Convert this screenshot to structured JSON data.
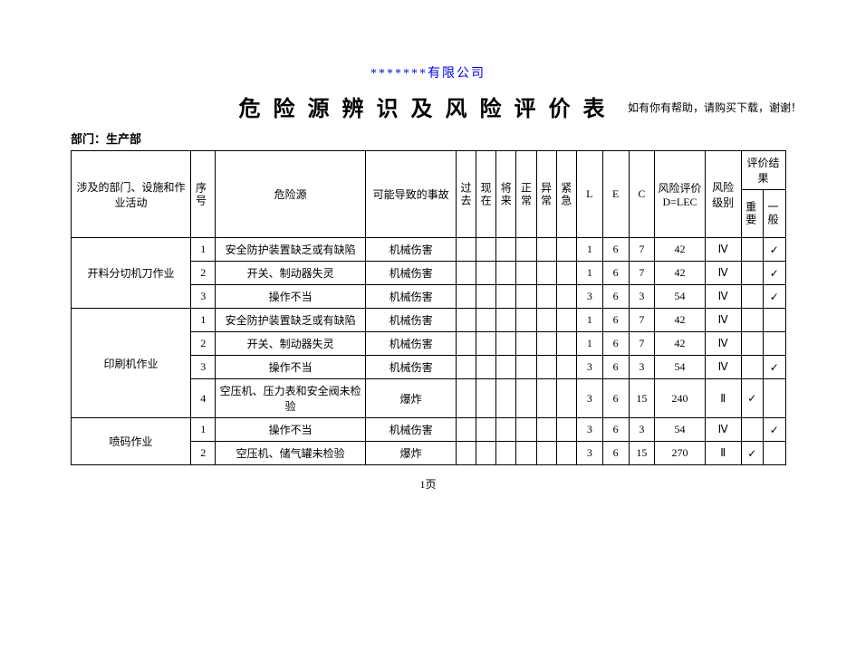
{
  "top_note": "如有你有帮助，请购买下载，谢谢！",
  "company": "*******有限公司",
  "title": "危险源辨识及风险评价表",
  "dept_label": "部门：生产部",
  "headers": {
    "activity": "涉及的部门、设施和作业活动",
    "seq": "序号",
    "hazard": "危险源",
    "accident": "可能导致的事故",
    "past": "过去",
    "present": "现在",
    "future": "将来",
    "normal": "正常",
    "abnormal": "异常",
    "emergency": "紧急",
    "L": "L",
    "E": "E",
    "C": "C",
    "D": "风险评价 D=LEC",
    "risk_level": "风险级别",
    "result": "评价结果",
    "important": "重要",
    "general": "一般"
  },
  "groups": [
    {
      "activity": "开料分切机刀作业",
      "rows": [
        {
          "seq": "1",
          "hazard": "安全防护装置缺乏或有缺陷",
          "accident": "机械伤害",
          "L": "1",
          "E": "6",
          "C": "7",
          "D": "42",
          "level": "Ⅳ",
          "important": "",
          "general": "✓"
        },
        {
          "seq": "2",
          "hazard": "开关、制动器失灵",
          "accident": "机械伤害",
          "L": "1",
          "E": "6",
          "C": "7",
          "D": "42",
          "level": "Ⅳ",
          "important": "",
          "general": "✓"
        },
        {
          "seq": "3",
          "hazard": "操作不当",
          "accident": "机械伤害",
          "L": "3",
          "E": "6",
          "C": "3",
          "D": "54",
          "level": "Ⅳ",
          "important": "",
          "general": "✓"
        }
      ]
    },
    {
      "activity": "印刷机作业",
      "rows": [
        {
          "seq": "1",
          "hazard": "安全防护装置缺乏或有缺陷",
          "accident": "机械伤害",
          "L": "1",
          "E": "6",
          "C": "7",
          "D": "42",
          "level": "Ⅳ",
          "important": "",
          "general": ""
        },
        {
          "seq": "2",
          "hazard": "开关、制动器失灵",
          "accident": "机械伤害",
          "L": "1",
          "E": "6",
          "C": "7",
          "D": "42",
          "level": "Ⅳ",
          "important": "",
          "general": ""
        },
        {
          "seq": "3",
          "hazard": "操作不当",
          "accident": "机械伤害",
          "L": "3",
          "E": "6",
          "C": "3",
          "D": "54",
          "level": "Ⅳ",
          "important": "",
          "general": "✓"
        },
        {
          "seq": "4",
          "hazard": "空压机、压力表和安全阀未检验",
          "accident": "爆炸",
          "L": "3",
          "E": "6",
          "C": "15",
          "D": "240",
          "level": "Ⅱ",
          "important": "✓",
          "general": ""
        }
      ]
    },
    {
      "activity": "喷码作业",
      "rows": [
        {
          "seq": "1",
          "hazard": "操作不当",
          "accident": "机械伤害",
          "L": "3",
          "E": "6",
          "C": "3",
          "D": "54",
          "level": "Ⅳ",
          "important": "",
          "general": "✓"
        },
        {
          "seq": "2",
          "hazard": "空压机、储气罐未检验",
          "accident": "爆炸",
          "L": "3",
          "E": "6",
          "C": "15",
          "D": "270",
          "level": "Ⅱ",
          "important": "✓",
          "general": ""
        }
      ]
    }
  ],
  "page_num": "1页"
}
